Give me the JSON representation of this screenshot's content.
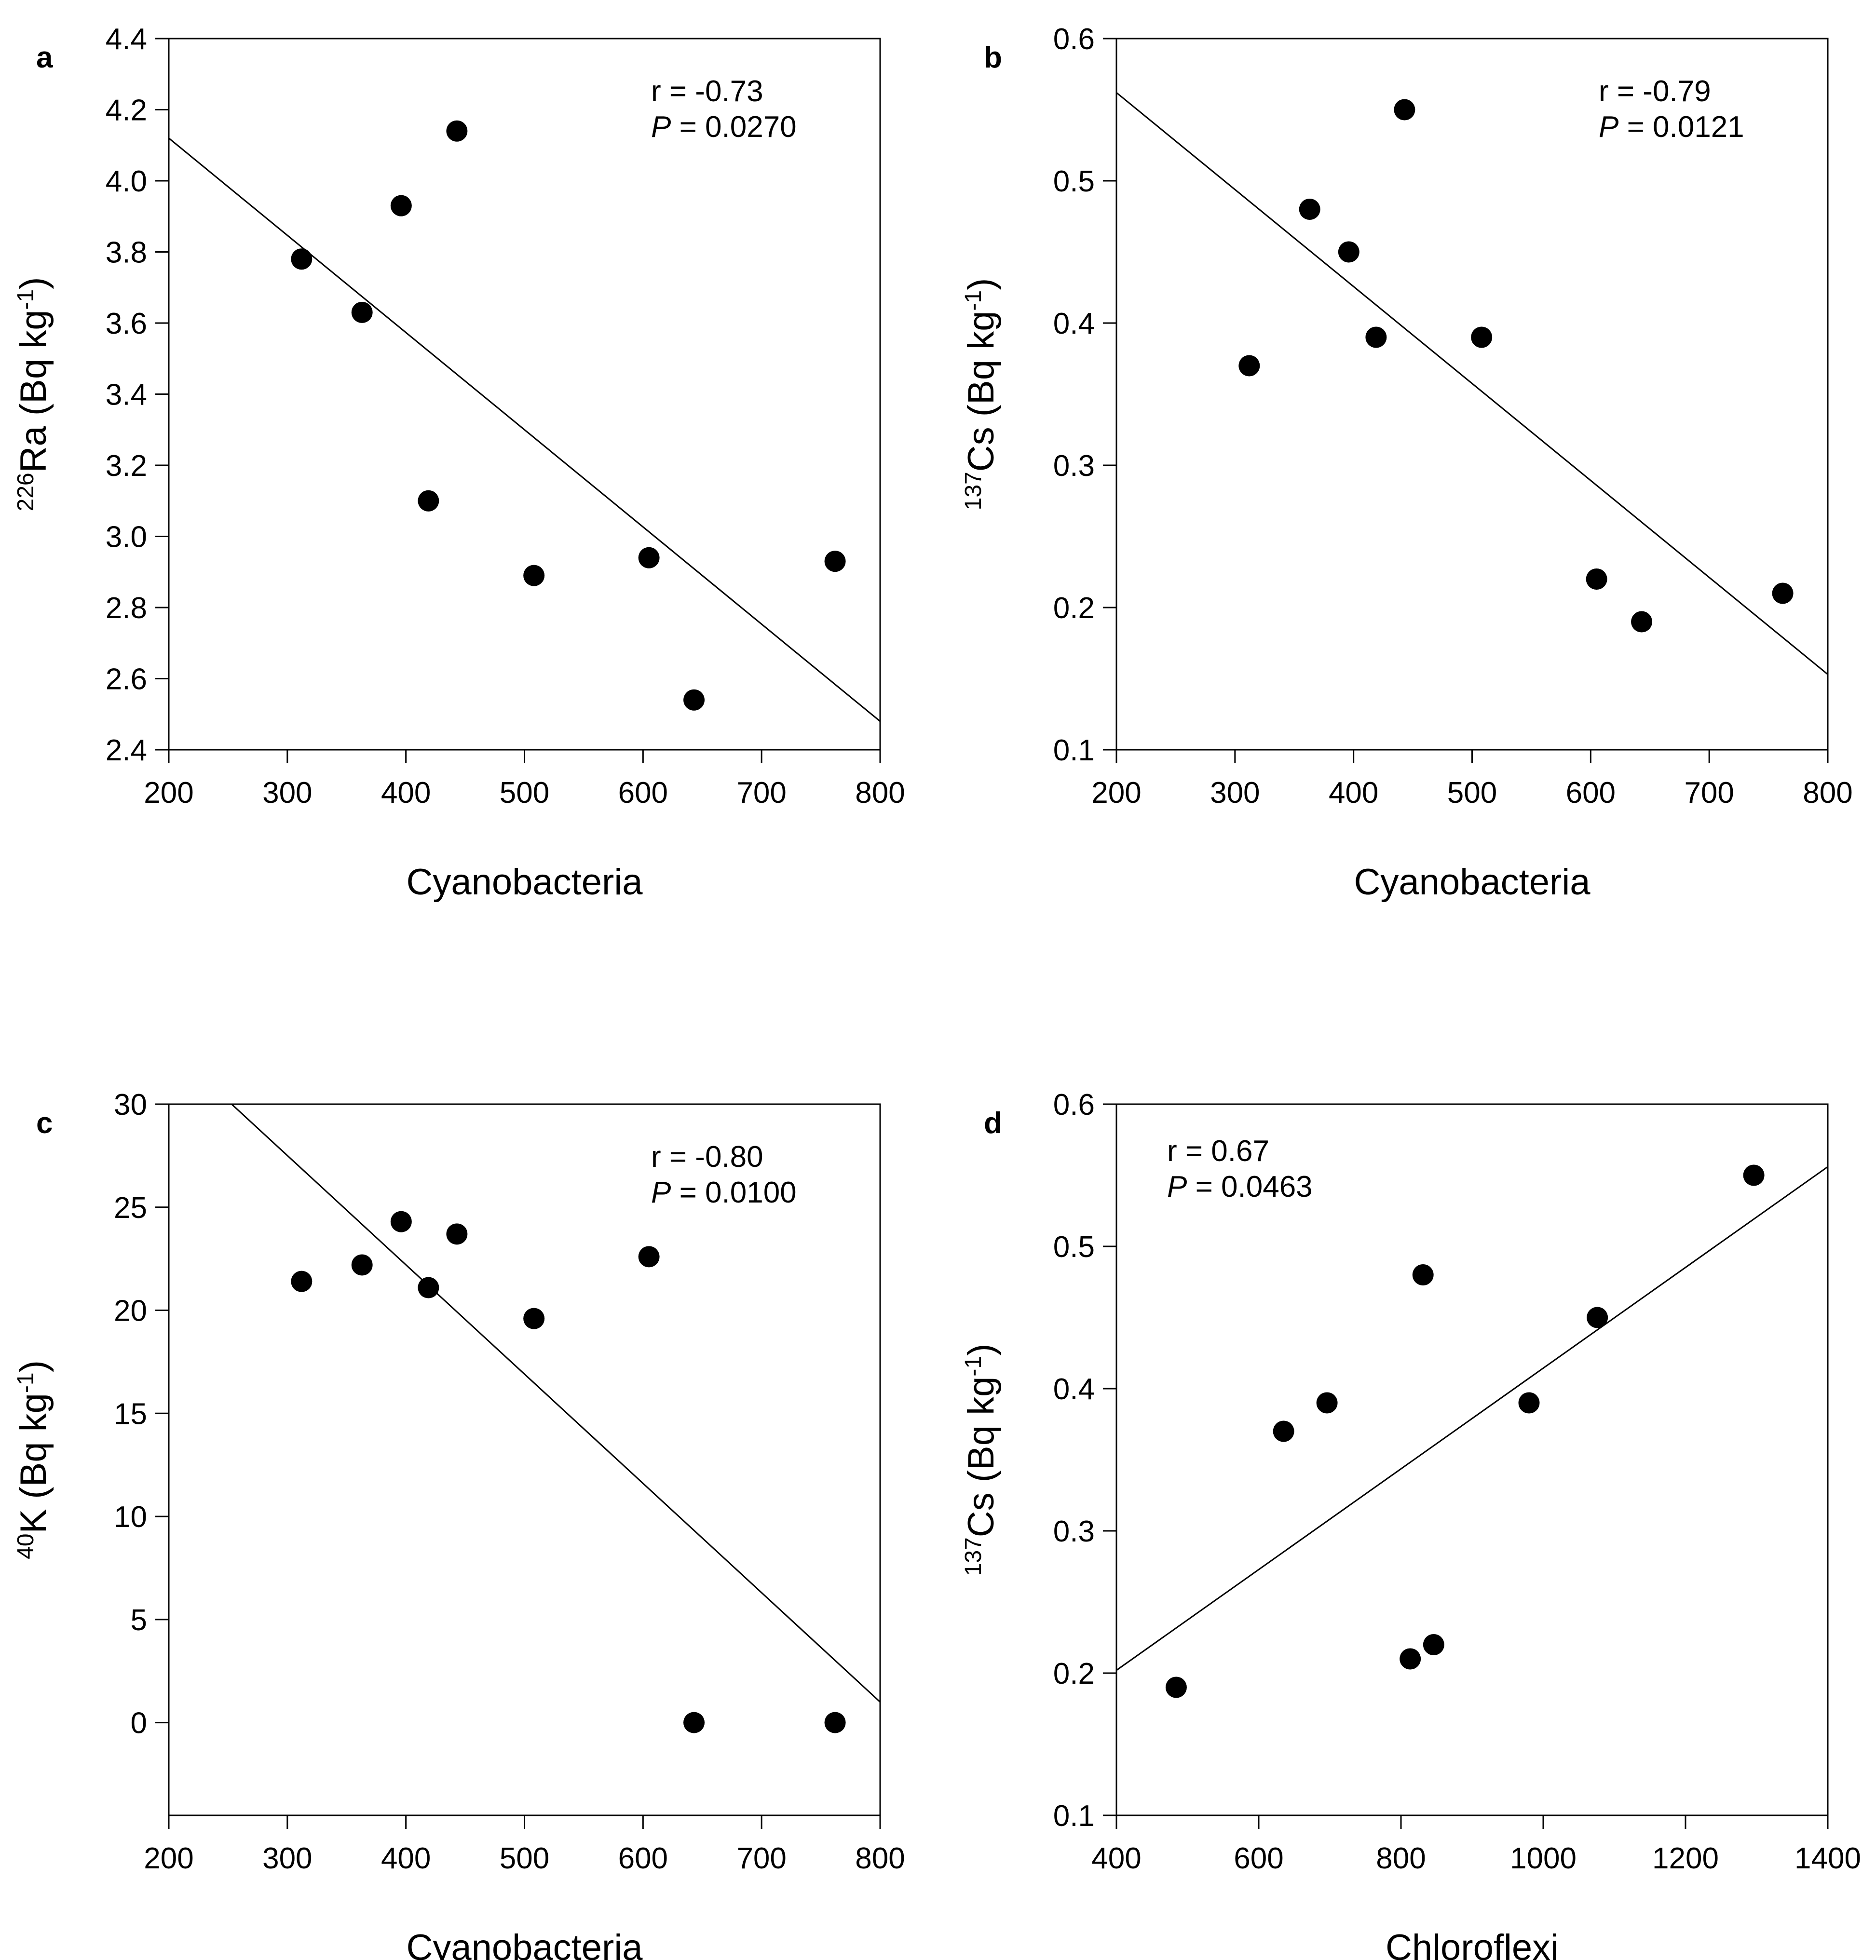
{
  "colors": {
    "background": "#ffffff",
    "ink": "#000000"
  },
  "chart_data": [
    {
      "type": "scatter",
      "panel": "a",
      "xlabel": "Cyanobacteria",
      "ylabel": {
        "isotope_mass": "226",
        "element": "Ra",
        "unit_prefix": " (Bq kg",
        "unit_exponent": "-1",
        "unit_suffix": ")"
      },
      "xlim": [
        200,
        800
      ],
      "ylim": [
        2.4,
        4.4
      ],
      "xticks": [
        "200",
        "300",
        "400",
        "500",
        "600",
        "700",
        "800"
      ],
      "yticks": [
        "2.4",
        "2.6",
        "2.8",
        "3.0",
        "3.2",
        "3.4",
        "3.6",
        "3.8",
        "4.0",
        "4.2",
        "4.4"
      ],
      "points": [
        {
          "x": 312,
          "y": 3.78
        },
        {
          "x": 363,
          "y": 3.63
        },
        {
          "x": 396,
          "y": 3.93
        },
        {
          "x": 419,
          "y": 3.1
        },
        {
          "x": 443,
          "y": 4.14
        },
        {
          "x": 508,
          "y": 2.89
        },
        {
          "x": 605,
          "y": 2.94
        },
        {
          "x": 643,
          "y": 2.54
        },
        {
          "x": 762,
          "y": 2.93
        }
      ],
      "fit_line": {
        "x": [
          200,
          800
        ],
        "y": [
          4.12,
          2.48
        ]
      },
      "annotation": {
        "r_text": "r = -0.73",
        "p_label": "P",
        "p_text": " = 0.0270",
        "position": "top-right"
      }
    },
    {
      "type": "scatter",
      "panel": "b",
      "xlabel": "Cyanobacteria",
      "ylabel": {
        "isotope_mass": "137",
        "element": "Cs",
        "unit_prefix": " (Bq kg",
        "unit_exponent": "-1",
        "unit_suffix": ")"
      },
      "xlim": [
        200,
        800
      ],
      "ylim": [
        0.1,
        0.6
      ],
      "xticks": [
        "200",
        "300",
        "400",
        "500",
        "600",
        "700",
        "800"
      ],
      "yticks": [
        "0.1",
        "0.2",
        "0.3",
        "0.4",
        "0.5",
        "0.6"
      ],
      "points": [
        {
          "x": 312,
          "y": 0.37
        },
        {
          "x": 363,
          "y": 0.48
        },
        {
          "x": 396,
          "y": 0.45
        },
        {
          "x": 419,
          "y": 0.39
        },
        {
          "x": 443,
          "y": 0.55
        },
        {
          "x": 508,
          "y": 0.39
        },
        {
          "x": 605,
          "y": 0.22
        },
        {
          "x": 643,
          "y": 0.19
        },
        {
          "x": 762,
          "y": 0.21
        }
      ],
      "fit_line": {
        "x": [
          200,
          800
        ],
        "y": [
          0.562,
          0.153
        ]
      },
      "annotation": {
        "r_text": "r = -0.79",
        "p_label": "P",
        "p_text": " = 0.0121",
        "position": "top-right"
      }
    },
    {
      "type": "scatter",
      "panel": "c",
      "xlabel": "Cyanobacteria",
      "ylabel": {
        "isotope_mass": "40",
        "element": "K",
        "unit_prefix": " (Bq kg",
        "unit_exponent": "-1",
        "unit_suffix": ")"
      },
      "xlim": [
        200,
        800
      ],
      "ylim": [
        -4.5,
        30
      ],
      "xticks": [
        "200",
        "300",
        "400",
        "500",
        "600",
        "700",
        "800"
      ],
      "yticks": [
        "0",
        "5",
        "10",
        "15",
        "20",
        "25",
        "30"
      ],
      "ytick_values": [
        0,
        5,
        10,
        15,
        20,
        25,
        30
      ],
      "points": [
        {
          "x": 312,
          "y": 21.4
        },
        {
          "x": 363,
          "y": 22.2
        },
        {
          "x": 396,
          "y": 24.3
        },
        {
          "x": 419,
          "y": 21.1
        },
        {
          "x": 443,
          "y": 23.7
        },
        {
          "x": 508,
          "y": 19.6
        },
        {
          "x": 605,
          "y": 22.6
        },
        {
          "x": 643,
          "y": 0.0
        },
        {
          "x": 762,
          "y": 0.0
        }
      ],
      "fit_line": {
        "x": [
          253,
          800
        ],
        "y": [
          30.0,
          1.0
        ]
      },
      "annotation": {
        "r_text": "r = -0.80",
        "p_label": "P",
        "p_text": " = 0.0100",
        "position": "top-right"
      }
    },
    {
      "type": "scatter",
      "panel": "d",
      "xlabel": "Chloroflexi",
      "ylabel": {
        "isotope_mass": "137",
        "element": "Cs",
        "unit_prefix": " (Bq kg",
        "unit_exponent": "-1",
        "unit_suffix": ")"
      },
      "xlim": [
        400,
        1400
      ],
      "ylim": [
        0.1,
        0.6
      ],
      "xticks": [
        "400",
        "600",
        "800",
        "1000",
        "1200",
        "1400"
      ],
      "yticks": [
        "0.1",
        "0.2",
        "0.3",
        "0.4",
        "0.5",
        "0.6"
      ],
      "points": [
        {
          "x": 484,
          "y": 0.19
        },
        {
          "x": 635,
          "y": 0.37
        },
        {
          "x": 696,
          "y": 0.39
        },
        {
          "x": 813,
          "y": 0.21
        },
        {
          "x": 831,
          "y": 0.48
        },
        {
          "x": 846,
          "y": 0.22
        },
        {
          "x": 980,
          "y": 0.39
        },
        {
          "x": 1076,
          "y": 0.45
        },
        {
          "x": 1296,
          "y": 0.55
        }
      ],
      "fit_line": {
        "x": [
          400,
          1400
        ],
        "y": [
          0.202,
          0.556
        ]
      },
      "annotation": {
        "r_text": "r = 0.67",
        "p_label": "P",
        "p_text": " = 0.0463",
        "position": "top-left"
      }
    }
  ]
}
